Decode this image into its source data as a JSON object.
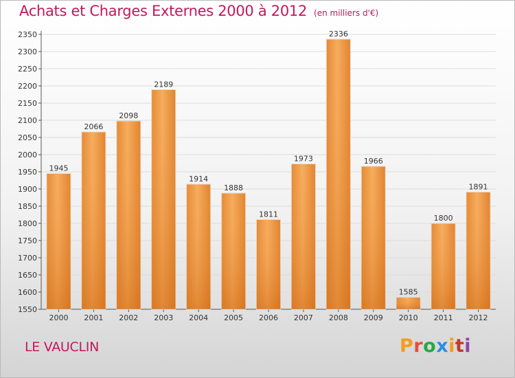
{
  "title": "Achats et Charges Externes 2000 à 2012",
  "subtitle": "(en milliers d'€)",
  "place": "LE VAUCLIN",
  "logo": {
    "letters": [
      "P",
      "r",
      "o",
      "x",
      "i",
      "t",
      "i"
    ],
    "colors": [
      "#f39c1f",
      "#e74c3c",
      "#27a844",
      "#2d8ee6",
      "#f39c1f",
      "#c0392b",
      "#8e44ad"
    ]
  },
  "colors": {
    "bar": "#f09a45",
    "bar_light": "#f6ad5e",
    "bar_dark": "#d9741f",
    "title": "#c2185b"
  },
  "chart_data": {
    "type": "bar",
    "title": "Achats et Charges Externes 2000 à 2012",
    "subtitle": "(en milliers d'€)",
    "categories": [
      "2000",
      "2001",
      "2002",
      "2003",
      "2004",
      "2005",
      "2006",
      "2007",
      "2008",
      "2009",
      "2010",
      "2011",
      "2012"
    ],
    "values": [
      1945,
      2066,
      2098,
      2189,
      1914,
      1888,
      1811,
      1973,
      2336,
      1966,
      1585,
      1800,
      1891
    ],
    "ylim": [
      1550,
      2350
    ],
    "ytick_step": 50,
    "grid": true,
    "legend": "none"
  }
}
